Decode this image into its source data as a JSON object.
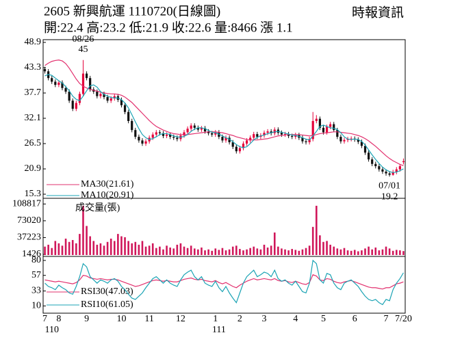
{
  "header": {
    "title": "2605  新興航運 1110720(日線圖)",
    "source": "時報資訊",
    "quote": "開:22.4 高:23.2 低:21.9 收:22.6 量:8466 漲 1.1"
  },
  "chart_data": [
    {
      "type": "candlestick",
      "up_color": "#e4003a",
      "down_color": "#111111",
      "ylim": [
        15.3,
        48.9
      ],
      "yticks": [
        48.9,
        43.3,
        37.7,
        32.1,
        26.5,
        20.9,
        15.3
      ],
      "annotations": [
        "08/26",
        "07/01"
      ],
      "open": [
        43.0,
        42.5,
        41.0,
        40.2,
        39.5,
        40.0,
        38.8,
        38.0,
        36.0,
        34.2,
        35.5,
        37.5,
        42.0,
        41.0,
        38.5,
        38.0,
        37.0,
        37.5,
        36.8,
        36.0,
        36.5,
        37.0,
        36.2,
        35.0,
        33.5,
        31.5,
        29.5,
        28.0,
        27.2,
        26.5,
        27.0,
        27.8,
        28.5,
        29.0,
        28.8,
        28.2,
        28.5,
        28.0,
        27.8,
        27.5,
        28.3,
        29.0,
        29.8,
        30.5,
        30.0,
        29.6,
        29.9,
        29.2,
        28.8,
        28.5,
        29.0,
        28.0,
        27.2,
        27.8,
        26.8,
        25.8,
        24.8,
        25.5,
        26.5,
        27.2,
        27.8,
        28.6,
        28.0,
        28.3,
        28.9,
        29.2,
        28.8,
        29.6,
        28.9,
        28.5,
        28.6,
        28.2,
        28.0,
        28.4,
        27.8,
        27.0,
        26.8,
        27.5,
        31.5,
        32.0,
        30.0,
        29.0,
        30.2,
        30.8,
        29.5,
        28.0,
        27.0,
        27.3,
        27.5,
        27.6,
        27.4,
        26.9,
        26.0,
        24.5,
        23.0,
        22.0,
        21.5,
        20.8,
        20.3,
        19.9,
        19.6,
        20.2,
        20.8,
        22.4
      ],
      "high": [
        43.5,
        43.0,
        41.5,
        40.7,
        40.5,
        40.5,
        39.3,
        38.5,
        36.5,
        36.0,
        38.0,
        45,
        42.5,
        41.5,
        39.0,
        38.5,
        38.0,
        38.0,
        37.3,
        37.0,
        37.5,
        37.5,
        36.7,
        35.5,
        34.0,
        32.0,
        30.0,
        28.5,
        27.7,
        27.5,
        28.3,
        29.0,
        29.5,
        29.5,
        29.3,
        29.0,
        29.0,
        28.5,
        28.3,
        28.8,
        29.5,
        30.3,
        31.0,
        31.0,
        30.5,
        30.4,
        30.4,
        29.7,
        29.3,
        29.5,
        29.5,
        28.5,
        28.3,
        28.3,
        27.3,
        26.3,
        26.0,
        27.0,
        27.7,
        28.3,
        29.1,
        29.1,
        28.8,
        29.4,
        29.7,
        29.7,
        30.1,
        30.1,
        29.4,
        29.1,
        29.1,
        28.7,
        28.9,
        28.9,
        28.3,
        27.5,
        28.0,
        33.5,
        32.8,
        32.5,
        30.5,
        30.7,
        31.3,
        31.3,
        30.0,
        28.5,
        27.8,
        28.0,
        28.1,
        28.1,
        27.9,
        27.4,
        26.5,
        25.0,
        23.5,
        22.5,
        22.0,
        21.3,
        20.8,
        20.4,
        20.7,
        21.3,
        22.0,
        23.2
      ],
      "low": [
        42.0,
        40.5,
        39.7,
        39.0,
        39.0,
        38.3,
        37.5,
        35.5,
        33.7,
        33.7,
        35.0,
        37.0,
        40.5,
        38.0,
        37.5,
        36.5,
        36.5,
        36.3,
        35.5,
        35.5,
        36.0,
        35.7,
        34.5,
        33.0,
        31.0,
        29.0,
        27.5,
        26.7,
        26.0,
        26.0,
        26.5,
        27.3,
        28.0,
        28.3,
        27.7,
        27.7,
        27.5,
        27.3,
        27.0,
        27.0,
        27.8,
        28.5,
        29.3,
        29.5,
        29.1,
        29.1,
        28.7,
        28.3,
        28.0,
        28.0,
        27.5,
        26.7,
        26.7,
        26.3,
        25.3,
        24.3,
        24.3,
        25.0,
        26.0,
        26.7,
        27.3,
        27.5,
        27.5,
        27.8,
        28.4,
        28.3,
        28.3,
        28.4,
        28.0,
        28.0,
        27.7,
        27.5,
        27.5,
        27.3,
        26.5,
        26.3,
        26.3,
        27.0,
        31.0,
        29.5,
        28.5,
        28.5,
        29.7,
        29.0,
        27.5,
        26.5,
        26.5,
        26.8,
        27.0,
        26.9,
        26.4,
        25.5,
        24.0,
        22.5,
        21.5,
        21.0,
        20.3,
        19.8,
        19.4,
        19.2,
        19.4,
        19.7,
        20.3,
        21.9
      ],
      "close": [
        42.5,
        41.0,
        40.2,
        39.5,
        40.0,
        38.8,
        38.0,
        36.0,
        34.2,
        35.5,
        37.5,
        42.0,
        41.0,
        38.5,
        38.0,
        37.0,
        37.5,
        36.8,
        36.0,
        36.5,
        37.0,
        36.2,
        35.0,
        33.5,
        31.5,
        29.5,
        28.0,
        27.2,
        26.5,
        27.0,
        27.8,
        28.5,
        29.0,
        28.8,
        28.2,
        28.5,
        28.0,
        27.8,
        27.5,
        28.3,
        29.0,
        29.8,
        30.5,
        30.0,
        29.6,
        29.9,
        29.2,
        28.8,
        28.5,
        29.0,
        28.0,
        27.2,
        27.8,
        26.8,
        25.8,
        24.8,
        25.5,
        26.5,
        27.2,
        27.8,
        28.6,
        28.0,
        28.3,
        28.9,
        29.2,
        28.8,
        29.6,
        28.9,
        28.5,
        28.6,
        28.2,
        28.0,
        28.4,
        27.8,
        27.0,
        26.8,
        27.5,
        31.5,
        32.0,
        30.0,
        29.0,
        30.2,
        30.8,
        29.5,
        28.0,
        27.0,
        27.3,
        27.5,
        27.6,
        27.4,
        26.9,
        26.0,
        24.5,
        23.0,
        22.0,
        21.5,
        20.8,
        20.3,
        19.9,
        19.6,
        20.2,
        20.8,
        21.5,
        22.6
      ],
      "series": [
        {
          "name": "MA30(21.61)",
          "color": "#e2306e",
          "values": [
            43.8,
            44.3,
            44.7,
            44.9,
            45.0,
            44.8,
            44.2,
            43.2,
            42.0,
            40.8,
            39.8,
            39.2,
            38.8,
            38.5,
            38.3,
            38.1,
            37.9,
            37.7,
            37.6,
            37.5,
            37.5,
            37.4,
            37.2,
            36.8,
            36.2,
            35.6,
            34.8,
            34.0,
            33.2,
            32.4,
            31.6,
            30.9,
            30.3,
            29.9,
            29.5,
            29.2,
            28.9,
            28.7,
            28.6,
            28.5,
            28.5,
            28.5,
            28.6,
            28.7,
            28.8,
            28.9,
            29.0,
            29.1,
            29.1,
            29.1,
            29.0,
            28.9,
            28.7,
            28.5,
            28.3,
            28.0,
            27.8,
            27.6,
            27.4,
            27.3,
            27.3,
            27.3,
            27.4,
            27.5,
            27.6,
            27.8,
            28.0,
            28.2,
            28.3,
            28.4,
            28.5,
            28.5,
            28.5,
            28.5,
            28.4,
            28.3,
            28.2,
            28.3,
            28.5,
            28.7,
            28.8,
            28.9,
            29.0,
            29.1,
            29.1,
            29.0,
            28.9,
            28.8,
            28.7,
            28.5,
            28.3,
            28.0,
            27.6,
            27.1,
            26.5,
            25.9,
            25.2,
            24.5,
            23.8,
            23.2,
            22.7,
            22.3,
            21.9,
            21.61
          ]
        },
        {
          "name": "MA10(20.91)",
          "color": "#1aa3b4",
          "values": [
            41.5,
            41.8,
            41.6,
            41.0,
            40.4,
            39.9,
            39.1,
            38.2,
            37.0,
            36.3,
            36.0,
            37.0,
            38.2,
            39.3,
            39.5,
            39.0,
            38.0,
            37.4,
            37.0,
            36.7,
            36.6,
            36.6,
            36.2,
            35.5,
            34.4,
            32.9,
            31.3,
            29.8,
            28.5,
            27.8,
            27.4,
            27.6,
            28.0,
            28.5,
            28.7,
            28.7,
            28.5,
            28.2,
            28.0,
            27.9,
            28.1,
            28.5,
            29.2,
            29.7,
            30.0,
            30.0,
            29.8,
            29.4,
            29.0,
            28.9,
            28.6,
            28.2,
            27.8,
            27.5,
            26.9,
            26.3,
            25.8,
            25.6,
            25.8,
            26.5,
            27.3,
            27.9,
            28.2,
            28.4,
            28.7,
            28.9,
            29.1,
            29.2,
            29.0,
            28.8,
            28.6,
            28.4,
            28.3,
            28.1,
            27.8,
            27.5,
            27.3,
            28.2,
            29.2,
            30.3,
            30.6,
            30.3,
            30.0,
            29.9,
            29.6,
            28.9,
            28.0,
            27.5,
            27.4,
            27.5,
            27.4,
            27.0,
            26.2,
            25.1,
            24.0,
            23.0,
            22.1,
            21.3,
            20.7,
            20.3,
            20.1,
            20.2,
            20.5,
            20.91
          ]
        }
      ]
    },
    {
      "type": "bar",
      "title": "成交量(張)",
      "color": "#d0175a",
      "ylim": [
        0,
        118000
      ],
      "yticks": [
        108817,
        73020,
        37223,
        1426
      ],
      "values": [
        18000,
        22000,
        15000,
        30000,
        25000,
        20000,
        35000,
        28000,
        32000,
        25000,
        45000,
        105000,
        62000,
        40000,
        30000,
        22000,
        25000,
        20000,
        28000,
        35000,
        30000,
        45000,
        40000,
        38000,
        30000,
        25000,
        28000,
        22000,
        30000,
        18000,
        20000,
        25000,
        15000,
        18000,
        12000,
        20000,
        16000,
        14000,
        22000,
        25000,
        18000,
        15000,
        20000,
        14000,
        12000,
        16000,
        10000,
        12000,
        9000,
        14000,
        11000,
        15000,
        10000,
        12000,
        18000,
        20000,
        13000,
        10000,
        12000,
        15000,
        18000,
        14000,
        12000,
        22000,
        16000,
        20000,
        48000,
        18000,
        14000,
        12000,
        10000,
        13000,
        11000,
        9000,
        12000,
        15000,
        20000,
        60000,
        105000,
        42000,
        28000,
        30000,
        22000,
        18000,
        14000,
        12000,
        15000,
        10000,
        9000,
        11000,
        8000,
        10000,
        14000,
        18000,
        12000,
        16000,
        10000,
        12000,
        18000,
        14000,
        9000,
        11000,
        10000,
        8466
      ]
    },
    {
      "type": "line",
      "ylim": [
        2,
        83
      ],
      "yticks": [
        80,
        57,
        33,
        10
      ],
      "categories": [
        "7",
        null,
        null,
        null,
        "8",
        null,
        null,
        null,
        null,
        null,
        null,
        null,
        "9",
        null,
        null,
        null,
        null,
        null,
        null,
        null,
        null,
        null,
        "10",
        null,
        null,
        null,
        null,
        null,
        null,
        null,
        "11",
        null,
        null,
        null,
        null,
        null,
        null,
        null,
        null,
        "12",
        null,
        null,
        null,
        null,
        null,
        null,
        null,
        null,
        null,
        "1",
        null,
        null,
        null,
        null,
        null,
        null,
        "2",
        null,
        null,
        null,
        null,
        null,
        null,
        "3",
        null,
        null,
        null,
        null,
        null,
        null,
        null,
        null,
        "4",
        null,
        null,
        null,
        null,
        null,
        null,
        null,
        "5",
        null,
        null,
        null,
        null,
        null,
        null,
        null,
        null,
        "6",
        null,
        null,
        null,
        null,
        null,
        null,
        null,
        null,
        "7",
        null,
        null,
        null,
        null,
        "7/20"
      ],
      "year_labels": [
        null,
        null,
        "110",
        null,
        null,
        null,
        null,
        null,
        null,
        null,
        null,
        null,
        null,
        null,
        null,
        null,
        null,
        null,
        null,
        null,
        null,
        null,
        null,
        null,
        null,
        null,
        null,
        null,
        null,
        null,
        null,
        null,
        null,
        null,
        null,
        null,
        null,
        null,
        null,
        null,
        null,
        null,
        null,
        null,
        null,
        null,
        null,
        null,
        null,
        null,
        "111",
        null,
        null,
        null,
        null,
        null,
        null,
        null,
        null,
        null,
        null,
        null,
        null,
        null,
        null,
        null,
        null,
        null,
        null,
        null,
        null,
        null,
        null,
        null,
        null,
        null,
        null,
        null,
        null,
        null,
        null,
        null,
        null,
        null,
        null,
        null,
        null,
        null,
        null,
        null,
        null,
        null,
        null,
        null,
        null,
        null,
        null,
        null,
        null,
        null,
        null,
        null,
        null,
        null
      ],
      "series": [
        {
          "name": "RSI30(47.03)",
          "color": "#e2306e",
          "values": [
            50,
            49,
            48,
            47,
            48,
            47,
            46,
            45,
            44,
            46,
            50,
            57,
            56,
            53,
            52,
            51,
            52,
            51,
            50,
            51,
            51,
            50,
            48,
            46,
            44,
            42,
            40,
            41,
            43,
            45,
            47,
            49,
            50,
            49,
            48,
            49,
            48,
            47,
            47,
            49,
            51,
            52,
            53,
            51,
            50,
            51,
            49,
            48,
            47,
            49,
            46,
            44,
            46,
            43,
            40,
            38,
            42,
            45,
            48,
            50,
            52,
            50,
            51,
            52,
            51,
            50,
            52,
            49,
            48,
            49,
            47,
            46,
            48,
            46,
            44,
            43,
            46,
            58,
            56,
            50,
            49,
            52,
            51,
            48,
            46,
            45,
            47,
            48,
            49,
            47,
            45,
            43,
            41,
            39,
            38,
            38,
            37,
            36,
            38,
            38,
            41,
            44,
            45,
            47.03
          ]
        },
        {
          "name": "RSI10(61.05)",
          "color": "#1aa3b4",
          "values": [
            45,
            40,
            38,
            35,
            42,
            38,
            35,
            30,
            28,
            40,
            55,
            75,
            70,
            55,
            50,
            45,
            50,
            48,
            45,
            50,
            52,
            48,
            40,
            35,
            28,
            22,
            20,
            25,
            30,
            38,
            45,
            52,
            55,
            50,
            45,
            50,
            45,
            42,
            40,
            50,
            58,
            62,
            65,
            55,
            50,
            55,
            45,
            42,
            40,
            48,
            38,
            32,
            40,
            30,
            22,
            15,
            30,
            45,
            55,
            60,
            65,
            55,
            58,
            62,
            60,
            55,
            65,
            52,
            48,
            50,
            45,
            42,
            48,
            40,
            32,
            30,
            45,
            80,
            75,
            50,
            45,
            60,
            58,
            45,
            38,
            35,
            45,
            48,
            50,
            45,
            40,
            32,
            25,
            20,
            18,
            20,
            15,
            12,
            20,
            18,
            35,
            45,
            52,
            61.05
          ]
        }
      ]
    }
  ]
}
